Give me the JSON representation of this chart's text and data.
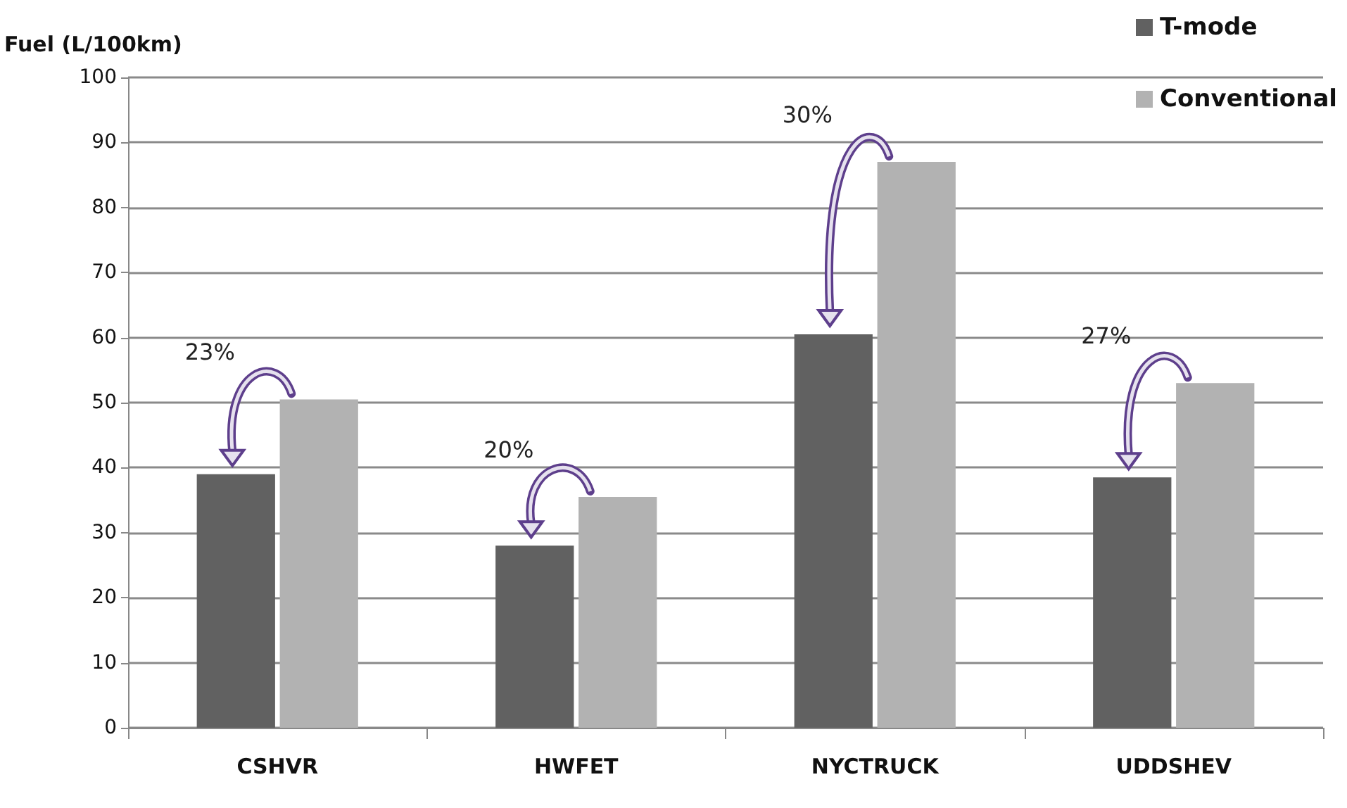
{
  "chart_data": {
    "type": "bar",
    "ylabel": "Fuel (L/100km)",
    "categories": [
      "CSHVR",
      "HWFET",
      "NYCTRUCK",
      "UDDSHEV"
    ],
    "series": [
      {
        "name": "T-mode",
        "color": "#616161",
        "values": [
          39,
          28,
          60.5,
          38.5
        ]
      },
      {
        "name": "Conventional",
        "color": "#b2b2b2",
        "values": [
          50.5,
          35.5,
          87,
          53
        ]
      }
    ],
    "ylim": [
      0,
      100
    ],
    "yticks": [
      0,
      10,
      20,
      30,
      40,
      50,
      60,
      70,
      80,
      90,
      100
    ],
    "grid": "y",
    "legend": "top right",
    "annotations": [
      "23%",
      "20%",
      "30%",
      "27%"
    ]
  }
}
